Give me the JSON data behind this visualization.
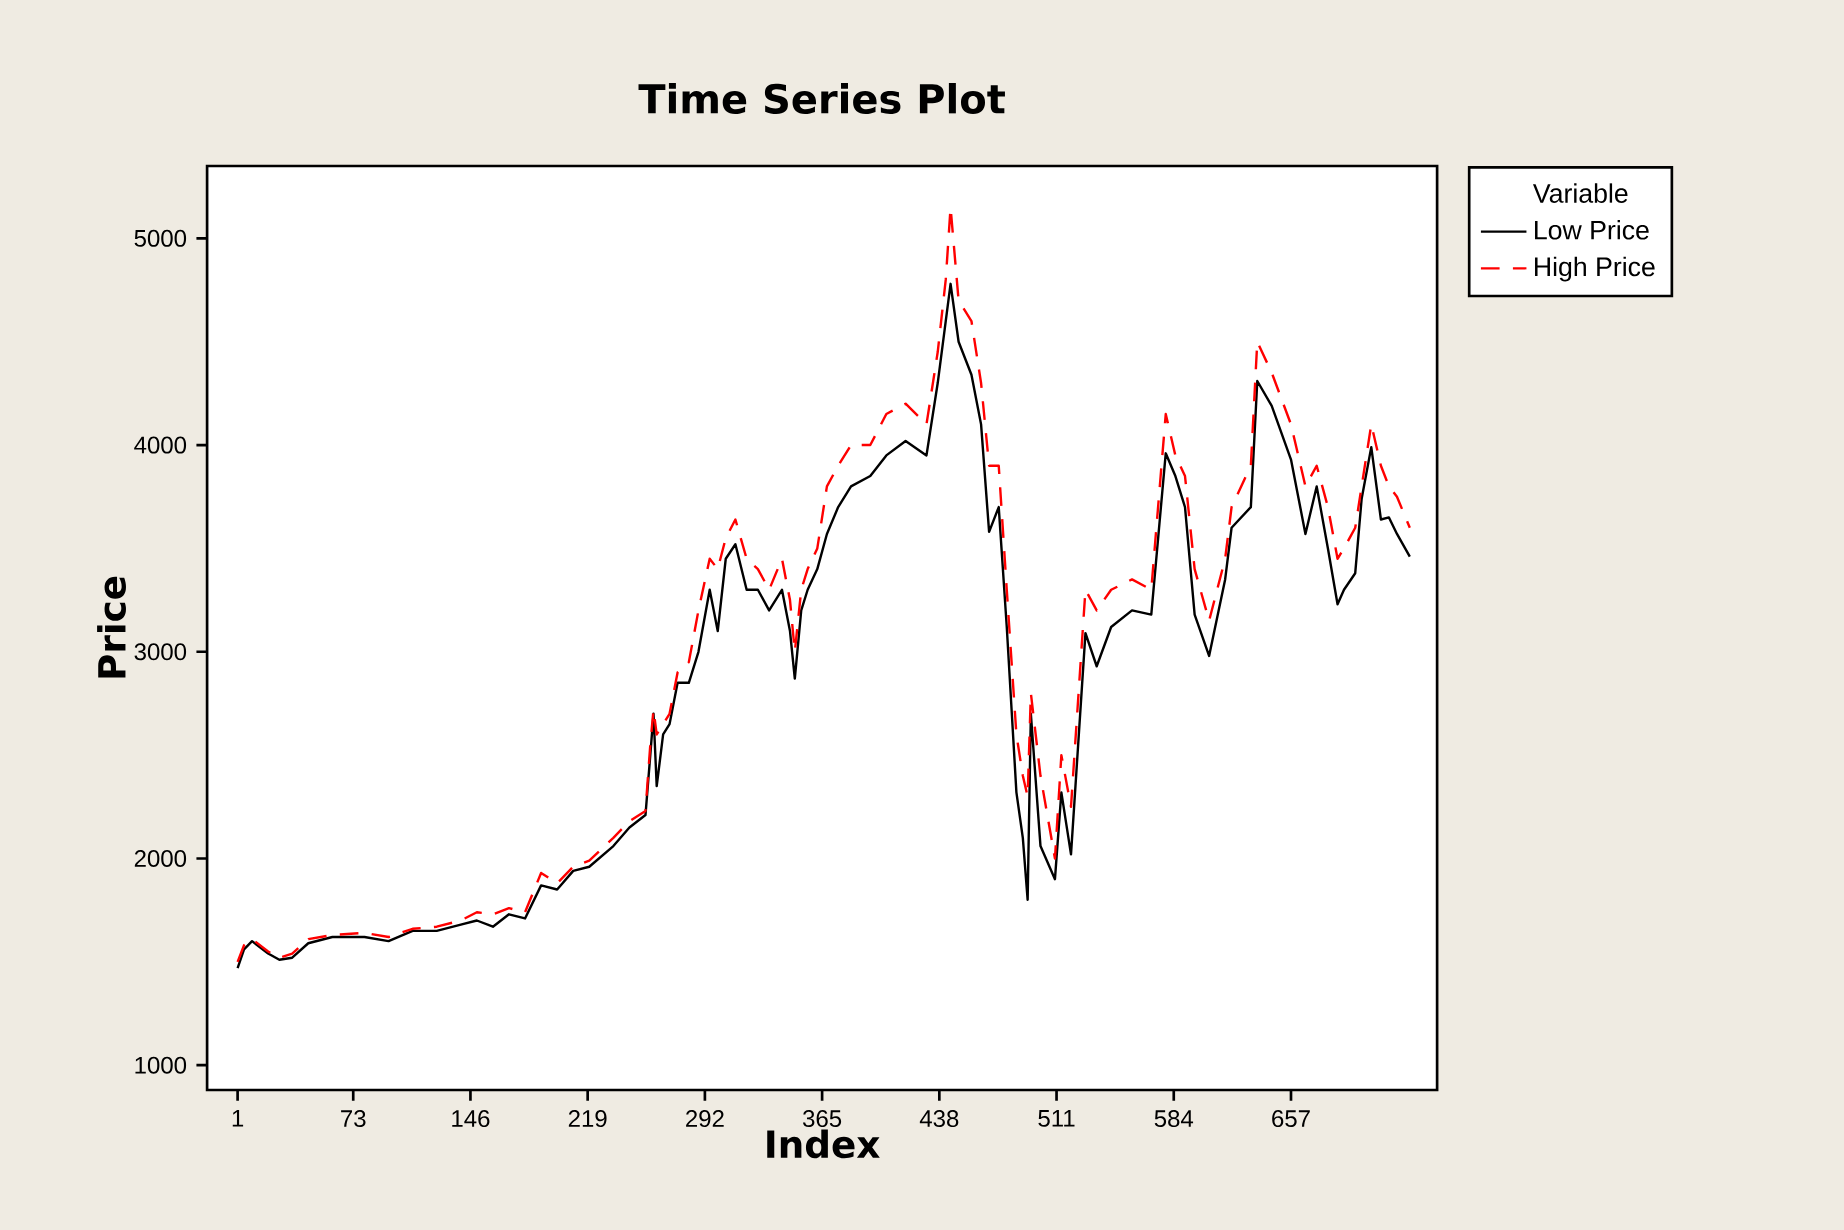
{
  "chart_data": {
    "type": "line",
    "title": "Time Series Plot",
    "xlabel": "Index",
    "ylabel": "Price",
    "legend_title": "Variable",
    "legend": "right",
    "x": [
      1,
      5,
      10,
      20,
      27,
      35,
      45,
      60,
      80,
      95,
      110,
      125,
      140,
      150,
      160,
      170,
      180,
      190,
      200,
      210,
      220,
      235,
      245,
      255,
      258,
      260,
      262,
      266,
      270,
      275,
      282,
      288,
      295,
      300,
      305,
      311,
      318,
      325,
      332,
      340,
      345,
      348,
      352,
      356,
      362,
      368,
      375,
      383,
      395,
      405,
      417,
      430,
      437,
      442,
      445,
      450,
      458,
      464,
      469,
      475,
      480,
      486,
      490,
      493,
      495,
      501,
      510,
      514,
      520,
      529,
      536,
      545,
      558,
      570,
      579,
      585,
      591,
      597,
      606,
      616,
      620,
      632,
      636,
      645,
      657,
      666,
      673,
      680,
      686,
      690,
      697,
      701,
      707,
      713,
      718,
      723,
      731
    ],
    "series": [
      {
        "name": "Low Price",
        "color": "#000000",
        "line_style": "solid",
        "values": [
          1470,
          1560,
          1600,
          1540,
          1510,
          1520,
          1590,
          1620,
          1620,
          1600,
          1650,
          1650,
          1680,
          1700,
          1670,
          1730,
          1710,
          1870,
          1850,
          1940,
          1960,
          2060,
          2150,
          2210,
          2500,
          2700,
          2350,
          2600,
          2650,
          2850,
          2850,
          3000,
          3300,
          3100,
          3450,
          3520,
          3300,
          3300,
          3200,
          3300,
          3100,
          2870,
          3200,
          3300,
          3400,
          3570,
          3700,
          3800,
          3850,
          3950,
          4020,
          3950,
          4300,
          4600,
          4780,
          4500,
          4340,
          4100,
          3580,
          3700,
          3120,
          2320,
          2100,
          1800,
          2700,
          2060,
          1900,
          2320,
          2020,
          3090,
          2930,
          3120,
          3200,
          3180,
          3960,
          3850,
          3700,
          3180,
          2980,
          3350,
          3600,
          3700,
          4310,
          4190,
          3930,
          3570,
          3800,
          3500,
          3230,
          3300,
          3380,
          3740,
          3990,
          3640,
          3650,
          3570,
          3460
        ]
      },
      {
        "name": "High Price",
        "color": "#ff0000",
        "line_style": "dashed",
        "values": [
          1500,
          1580,
          1610,
          1550,
          1520,
          1540,
          1610,
          1630,
          1640,
          1620,
          1660,
          1670,
          1700,
          1740,
          1730,
          1760,
          1740,
          1930,
          1880,
          1960,
          1990,
          2100,
          2180,
          2230,
          2550,
          2720,
          2600,
          2650,
          2700,
          2900,
          2950,
          3200,
          3450,
          3400,
          3550,
          3640,
          3450,
          3400,
          3300,
          3450,
          3250,
          3000,
          3300,
          3400,
          3500,
          3800,
          3900,
          4000,
          4000,
          4150,
          4200,
          4100,
          4450,
          4800,
          5150,
          4700,
          4600,
          4300,
          3900,
          3900,
          3300,
          2600,
          2400,
          2300,
          2800,
          2400,
          2000,
          2500,
          2250,
          3300,
          3200,
          3300,
          3350,
          3300,
          4150,
          3950,
          3850,
          3400,
          3150,
          3450,
          3700,
          3900,
          4500,
          4350,
          4100,
          3800,
          3900,
          3700,
          3450,
          3500,
          3600,
          3800,
          4100,
          3900,
          3800,
          3750,
          3600
        ]
      }
    ],
    "xlim": [
      -18,
      748
    ],
    "ylim": [
      880,
      5350
    ],
    "xticks": [
      1,
      73,
      146,
      219,
      292,
      365,
      438,
      511,
      584,
      657
    ],
    "yticks": [
      1000,
      2000,
      3000,
      4000,
      5000
    ]
  }
}
